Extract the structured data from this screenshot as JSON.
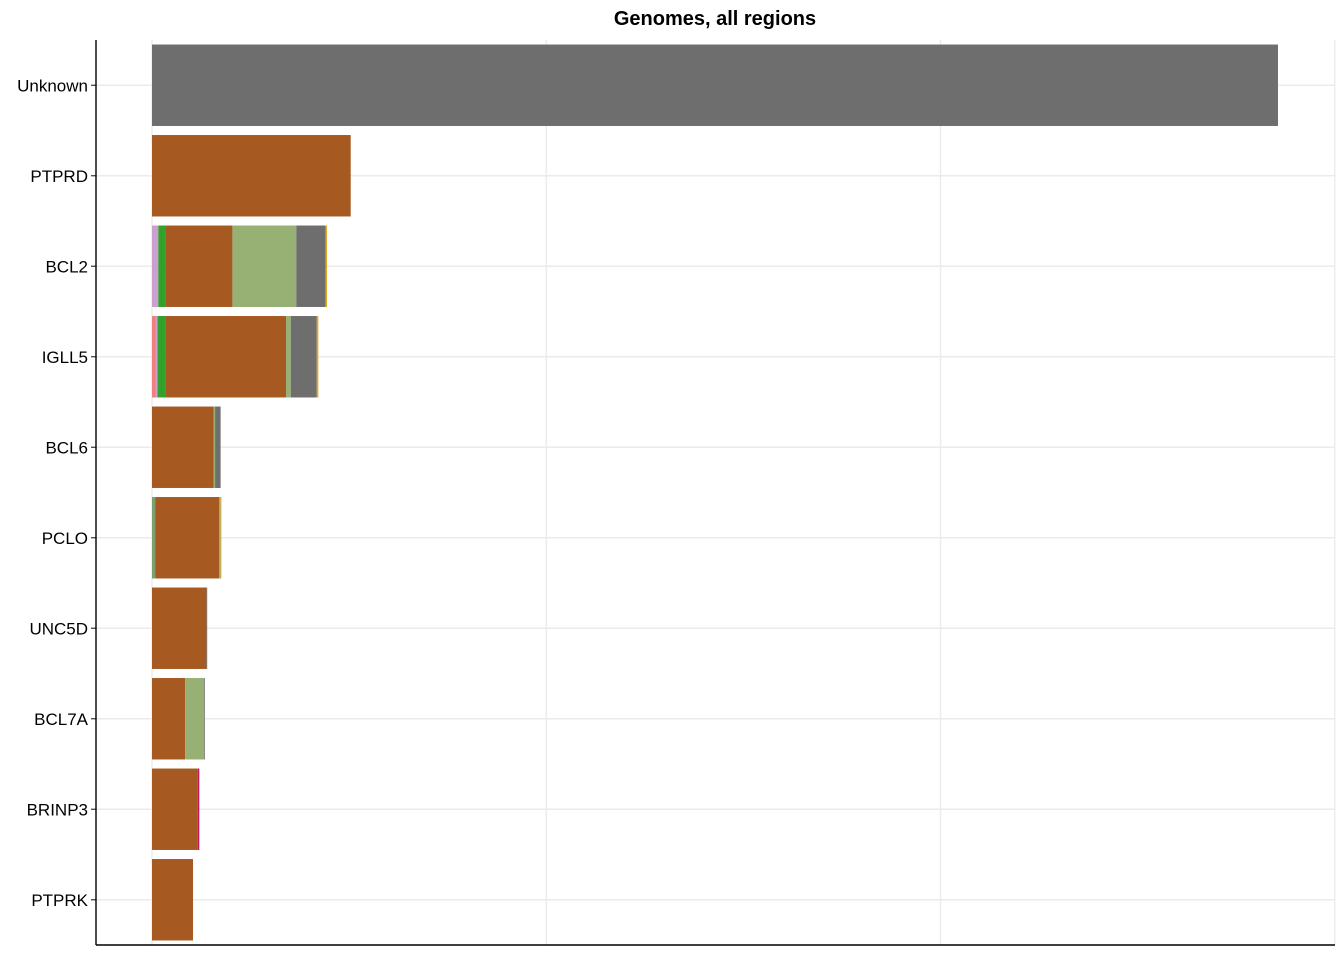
{
  "chart_data": {
    "type": "bar",
    "orientation": "horizontal",
    "stacked": true,
    "title": "Genomes, all regions",
    "xlabel": "",
    "ylabel": "",
    "xlim": [
      -0.72,
      15
    ],
    "x_gridlines": [
      0,
      5,
      10,
      15
    ],
    "y_gridlines": true,
    "legend": "none",
    "categories": [
      "Unknown",
      "PTPRD",
      "BCL2",
      "IGLL5",
      "BCL6",
      "PCLO",
      "UNC5D",
      "BCL7A",
      "BRINP3",
      "PTPRK"
    ],
    "series": [
      {
        "color": "#f08080",
        "values": [
          0,
          0,
          0,
          0.05,
          0,
          0,
          0,
          0,
          0,
          0
        ]
      },
      {
        "color": "#c9a0d0",
        "values": [
          0,
          0,
          0.08,
          0.02,
          0,
          0,
          0,
          0,
          0,
          0
        ]
      },
      {
        "color": "#33a02c",
        "values": [
          0,
          0,
          0.09,
          0.1,
          0,
          0,
          0,
          0,
          0,
          0
        ]
      },
      {
        "color": "#7da06e",
        "values": [
          0,
          0,
          0,
          0,
          0,
          0.04,
          0,
          0,
          0,
          0
        ]
      },
      {
        "color": "#a65a21",
        "values": [
          0,
          2.52,
          0.85,
          1.53,
          0.78,
          0.81,
          0.69,
          0.42,
          0.58,
          0.52
        ]
      },
      {
        "color": "#97b074",
        "values": [
          0,
          0,
          0.81,
          0.06,
          0.02,
          0.02,
          0,
          0.24,
          0,
          0
        ]
      },
      {
        "color": "#6e6e6e",
        "values": [
          14.28,
          0,
          0.37,
          0.33,
          0.07,
          0,
          0.01,
          0.01,
          0,
          0
        ]
      },
      {
        "color": "#e5a823",
        "values": [
          0,
          0,
          0.02,
          0.02,
          0,
          0.01,
          0,
          0,
          0,
          0
        ]
      },
      {
        "color": "#c2185b",
        "values": [
          0,
          0,
          0,
          0,
          0,
          0,
          0,
          0,
          0.02,
          0
        ]
      }
    ]
  }
}
